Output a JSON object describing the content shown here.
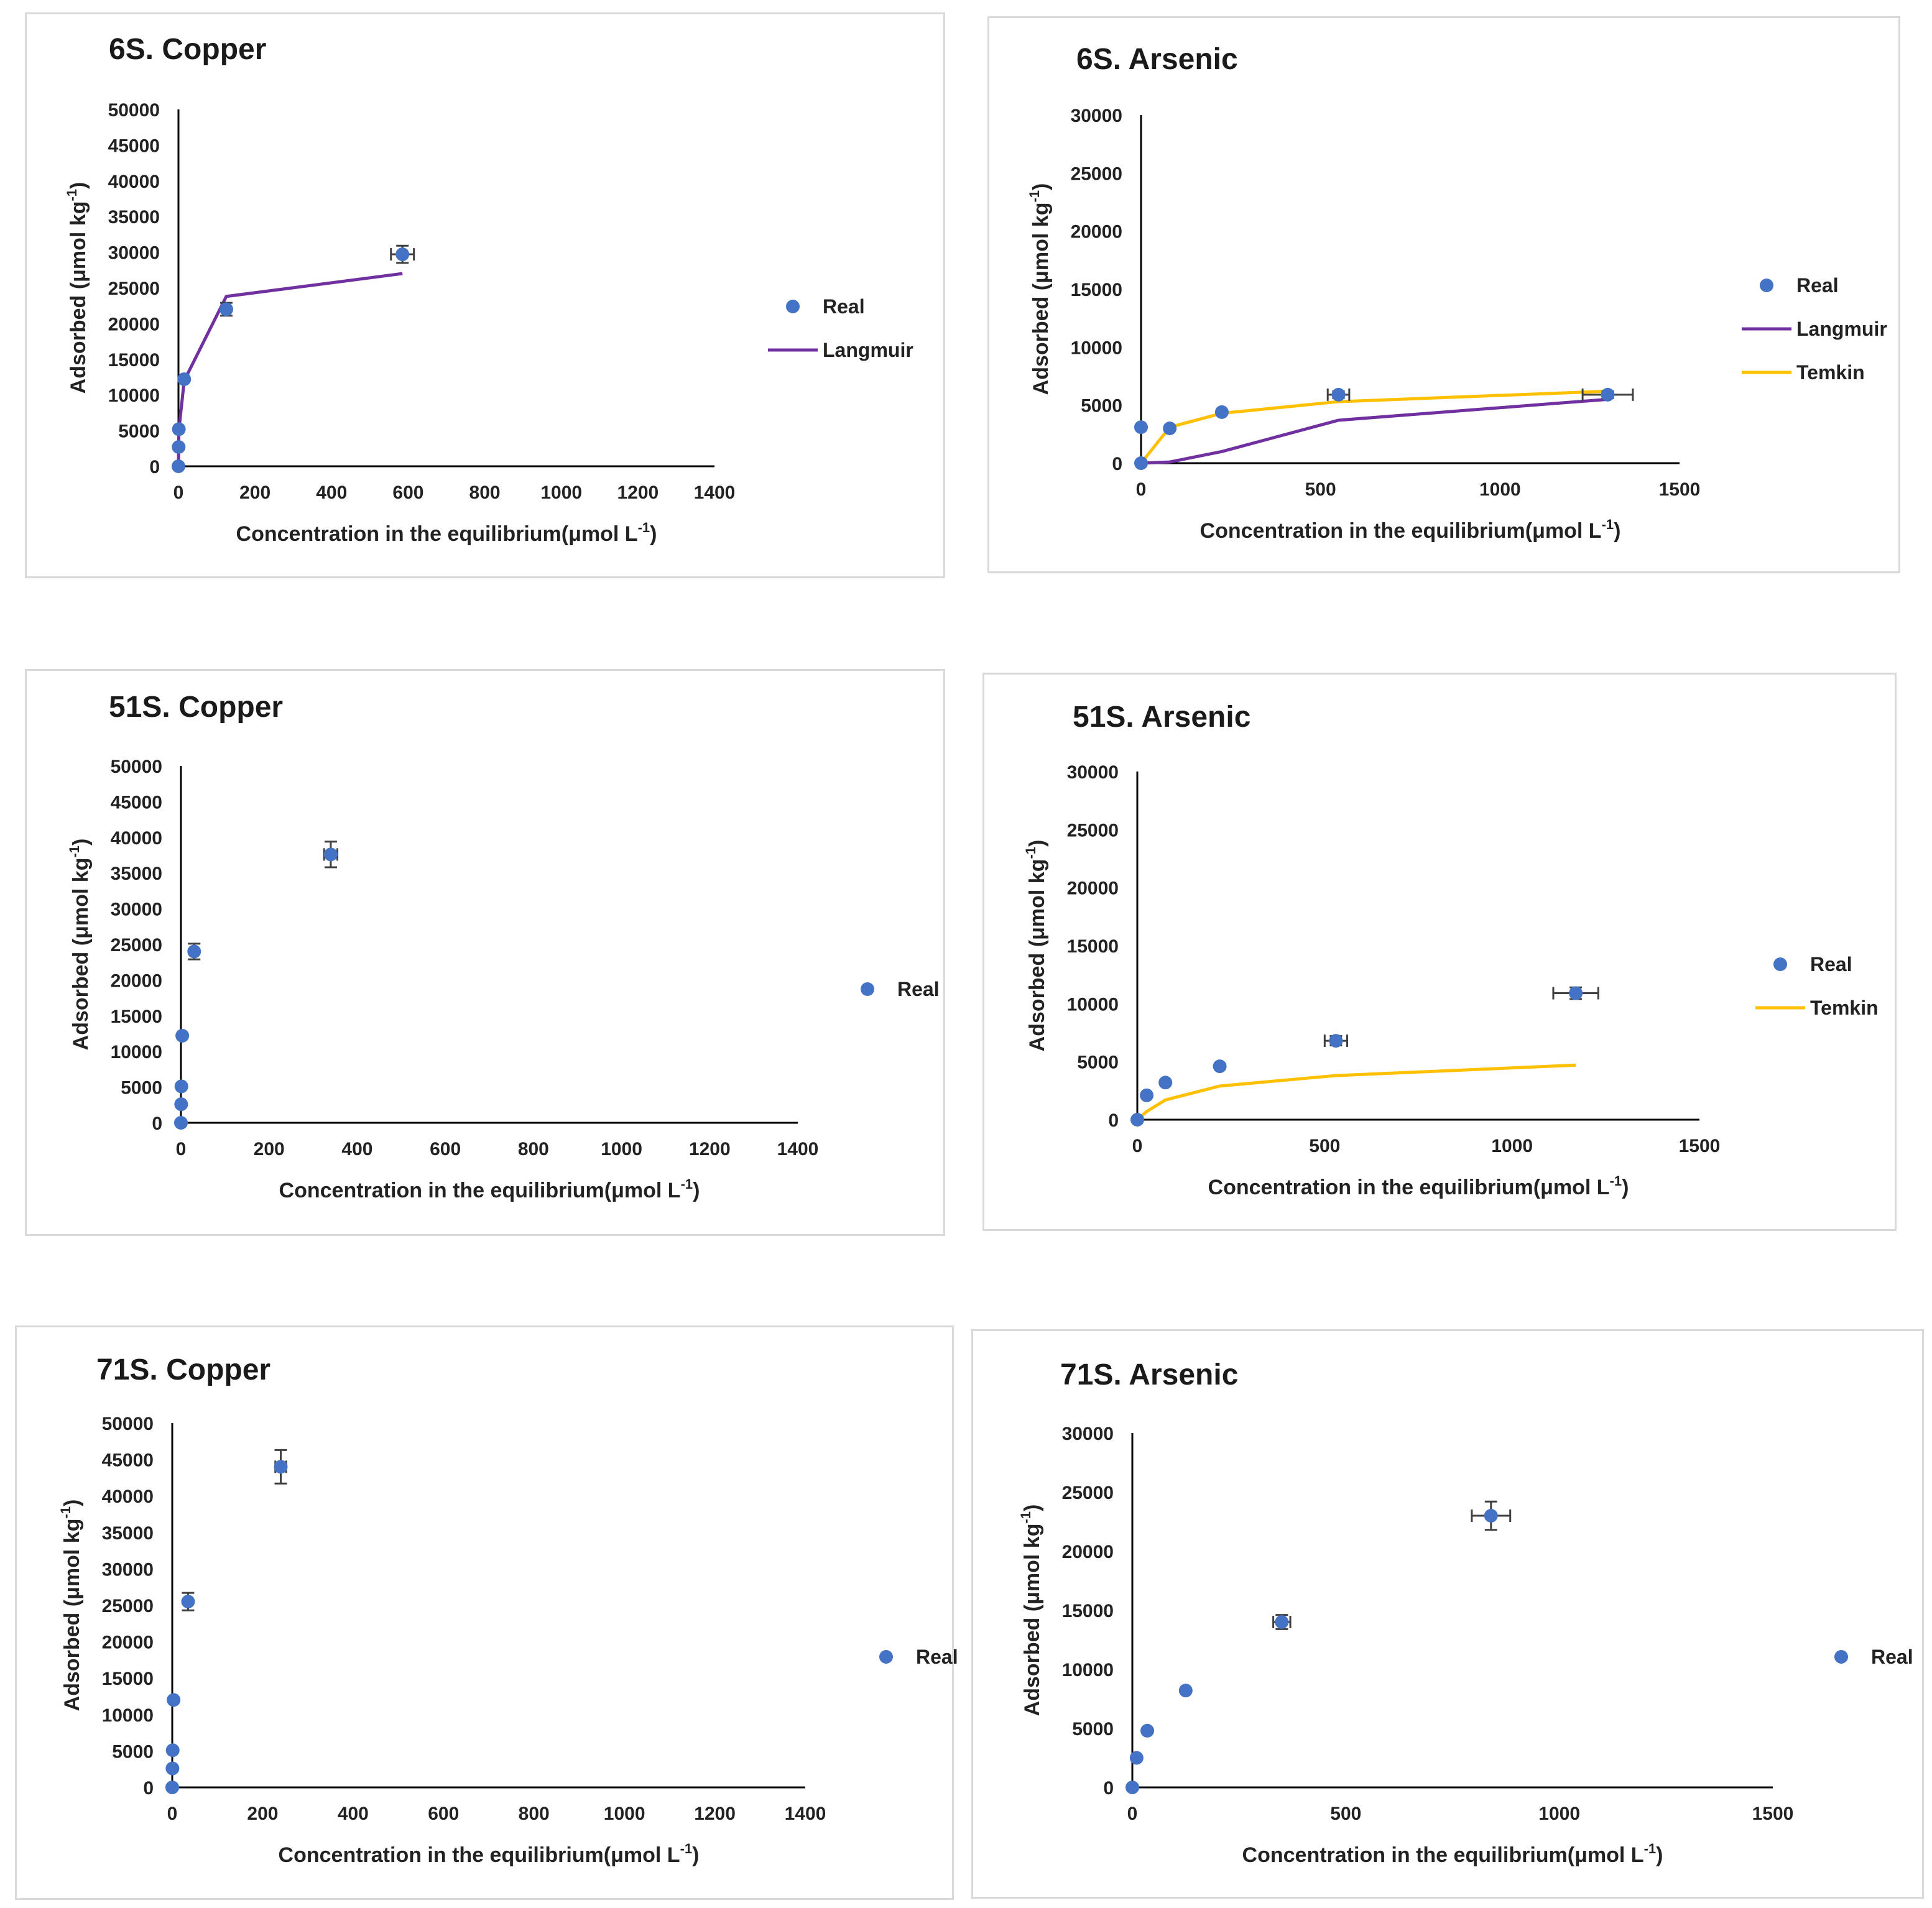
{
  "colors": {
    "real": "#4472C4",
    "langmuir": "#7030A0",
    "temkin": "#FFC000",
    "errorbar": "#404040"
  },
  "chart_data": [
    {
      "type": "scatter",
      "title": "6S. Copper",
      "xlabel": "Concentration in the equilibrium(μmol L",
      "xlabel_sup": "-1",
      "xlabel_end": ")",
      "ylabel": "Adsorbed (μmol kg",
      "ylabel_sup": "-1",
      "ylabel_end": ")",
      "xlim": [
        0,
        1400
      ],
      "xticks": [
        0,
        200,
        400,
        600,
        800,
        1000,
        1200,
        1400
      ],
      "ylim": [
        0,
        50000
      ],
      "yticks": [
        0,
        5000,
        10000,
        15000,
        20000,
        25000,
        30000,
        35000,
        40000,
        45000,
        50000
      ],
      "legend_position": "right",
      "series": [
        {
          "name": "Real",
          "kind": "points",
          "color_key": "real",
          "x": [
            0,
            0.5,
            1,
            15,
            125,
            585
          ],
          "y": [
            0,
            2700,
            5200,
            12200,
            22000,
            29700
          ],
          "xerr": [
            0,
            0,
            0,
            0,
            0,
            30
          ],
          "yerr": [
            0,
            0,
            0,
            0,
            900,
            1200
          ]
        },
        {
          "name": "Langmuir",
          "kind": "line",
          "color_key": "langmuir",
          "x": [
            0,
            0.5,
            1,
            15,
            125,
            585
          ],
          "y": [
            0,
            2400,
            5000,
            12000,
            23800,
            27000
          ]
        }
      ]
    },
    {
      "type": "scatter",
      "title": "6S. Arsenic",
      "xlabel": "Concentration in the equilibrium(μmol L",
      "xlabel_sup": "-1",
      "xlabel_end": ")",
      "ylabel": "Adsorbed (μmol kg",
      "ylabel_sup": "-1",
      "ylabel_end": ")",
      "xlim": [
        0,
        1500
      ],
      "xticks": [
        0,
        500,
        1000,
        1500
      ],
      "ylim": [
        0,
        30000
      ],
      "yticks": [
        0,
        5000,
        10000,
        15000,
        20000,
        25000,
        30000
      ],
      "legend_position": "right",
      "series": [
        {
          "name": "Real",
          "kind": "points",
          "color_key": "real",
          "x": [
            0,
            0,
            80,
            225,
            550,
            1300
          ],
          "y": [
            0,
            3100,
            3000,
            4400,
            5900,
            5900
          ],
          "xerr": [
            0,
            0,
            0,
            0,
            30,
            70
          ],
          "yerr": [
            0,
            0,
            0,
            0,
            300,
            300
          ]
        },
        {
          "name": "Langmuir",
          "kind": "line",
          "color_key": "langmuir",
          "x": [
            0,
            80,
            225,
            550,
            1300
          ],
          "y": [
            0,
            100,
            1000,
            3700,
            5500
          ]
        },
        {
          "name": "Temkin",
          "kind": "line",
          "color_key": "temkin",
          "x": [
            0,
            80,
            225,
            550,
            1300
          ],
          "y": [
            0,
            3100,
            4300,
            5300,
            6200
          ]
        }
      ]
    },
    {
      "type": "scatter",
      "title": "51S. Copper",
      "xlabel": "Concentration in the equilibrium(μmol L",
      "xlabel_sup": "-1",
      "xlabel_end": ")",
      "ylabel": "Adsorbed (μmol kg",
      "ylabel_sup": "-1",
      "ylabel_end": ")",
      "xlim": [
        0,
        1400
      ],
      "xticks": [
        0,
        200,
        400,
        600,
        800,
        1000,
        1200,
        1400
      ],
      "ylim": [
        0,
        50000
      ],
      "yticks": [
        0,
        5000,
        10000,
        15000,
        20000,
        25000,
        30000,
        35000,
        40000,
        45000,
        50000
      ],
      "legend_position": "right",
      "series": [
        {
          "name": "Real",
          "kind": "points",
          "color_key": "real",
          "x": [
            0,
            0.5,
            1,
            3,
            30,
            340
          ],
          "y": [
            0,
            2600,
            5100,
            12200,
            24000,
            37600
          ],
          "xerr": [
            0,
            0,
            0,
            0,
            0,
            15
          ],
          "yerr": [
            0,
            0,
            0,
            0,
            1100,
            1800
          ]
        }
      ]
    },
    {
      "type": "scatter",
      "title": "51S. Arsenic",
      "xlabel": "Concentration in the equilibrium(μmol L",
      "xlabel_sup": "-1",
      "xlabel_end": ")",
      "ylabel": "Adsorbed (μmol kg",
      "ylabel_sup": "-1",
      "ylabel_end": ")",
      "xlim": [
        0,
        1500
      ],
      "xticks": [
        0,
        500,
        1000,
        1500
      ],
      "ylim": [
        0,
        30000
      ],
      "yticks": [
        0,
        5000,
        10000,
        15000,
        20000,
        25000,
        30000
      ],
      "legend_position": "right",
      "series": [
        {
          "name": "Real",
          "kind": "points",
          "color_key": "real",
          "x": [
            0,
            25,
            75,
            220,
            530,
            1170
          ],
          "y": [
            0,
            2100,
            3200,
            4600,
            6800,
            10900
          ],
          "xerr": [
            0,
            0,
            0,
            0,
            30,
            60
          ],
          "yerr": [
            0,
            0,
            0,
            0,
            400,
            500
          ]
        },
        {
          "name": "Temkin",
          "kind": "line",
          "color_key": "temkin",
          "x": [
            0,
            25,
            75,
            220,
            530,
            1170
          ],
          "y": [
            0,
            700,
            1700,
            2900,
            3800,
            4700
          ]
        }
      ]
    },
    {
      "type": "scatter",
      "title": "71S. Copper",
      "xlabel": "Concentration in the equilibrium(μmol L",
      "xlabel_sup": "-1",
      "xlabel_end": ")",
      "ylabel": "Adsorbed (μmol kg",
      "ylabel_sup": "-1",
      "ylabel_end": ")",
      "xlim": [
        0,
        1400
      ],
      "xticks": [
        0,
        200,
        400,
        600,
        800,
        1000,
        1200,
        1400
      ],
      "ylim": [
        0,
        50000
      ],
      "yticks": [
        0,
        5000,
        10000,
        15000,
        20000,
        25000,
        30000,
        35000,
        40000,
        45000,
        50000
      ],
      "legend_position": "right",
      "series": [
        {
          "name": "Real",
          "kind": "points",
          "color_key": "real",
          "x": [
            0,
            0.5,
            1,
            3,
            35,
            240
          ],
          "y": [
            0,
            2600,
            5100,
            12000,
            25500,
            44000
          ],
          "xerr": [
            0,
            0,
            0,
            0,
            0,
            12
          ],
          "yerr": [
            0,
            0,
            0,
            0,
            1200,
            2300
          ]
        }
      ]
    },
    {
      "type": "scatter",
      "title": "71S. Arsenic",
      "xlabel": "Concentration in the equilibrium(μmol L",
      "xlabel_sup": "-1",
      "xlabel_end": ")",
      "ylabel": "Adsorbed (μmol kg",
      "ylabel_sup": "-1",
      "ylabel_end": ")",
      "xlim": [
        0,
        1500
      ],
      "xticks": [
        0,
        500,
        1000,
        1500
      ],
      "ylim": [
        0,
        30000
      ],
      "yticks": [
        0,
        5000,
        10000,
        15000,
        20000,
        25000,
        30000
      ],
      "legend_position": "right",
      "series": [
        {
          "name": "Real",
          "kind": "points",
          "color_key": "real",
          "x": [
            0,
            10,
            35,
            125,
            350,
            840
          ],
          "y": [
            0,
            2500,
            4800,
            8200,
            14000,
            23000
          ],
          "xerr": [
            0,
            0,
            0,
            0,
            20,
            45
          ],
          "yerr": [
            0,
            0,
            0,
            0,
            600,
            1200
          ]
        }
      ]
    }
  ]
}
